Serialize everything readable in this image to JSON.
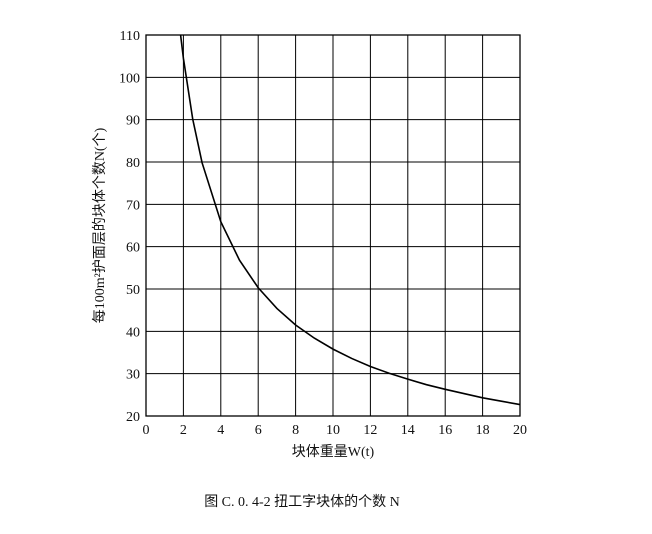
{
  "chart_data": {
    "type": "line",
    "xlabel": "块体重量W(t)",
    "ylabel": "每100m²护面层的块体个数N(个)",
    "caption": "图 C. 0. 4-2    扭工字块体的个数 N",
    "xlim": [
      0,
      20
    ],
    "ylim": [
      20,
      110
    ],
    "x_ticks": [
      0,
      2,
      4,
      6,
      8,
      10,
      12,
      14,
      16,
      18,
      20
    ],
    "y_ticks": [
      20,
      30,
      40,
      50,
      60,
      70,
      80,
      90,
      100,
      110
    ],
    "grid": true,
    "series": [
      {
        "x": [
          1.85,
          2,
          2.5,
          3,
          4,
          5,
          6,
          7,
          8,
          9,
          10,
          11,
          12,
          13,
          14,
          15,
          16,
          17,
          18,
          19,
          20
        ],
        "y": [
          110,
          104.5,
          90.1,
          79.8,
          65.9,
          56.8,
          50.3,
          45.4,
          41.5,
          38.4,
          35.8,
          33.6,
          31.7,
          30.1,
          28.7,
          27.4,
          26.3,
          25.3,
          24.3,
          23.5,
          22.7
        ]
      }
    ],
    "line_color": "#000000"
  }
}
